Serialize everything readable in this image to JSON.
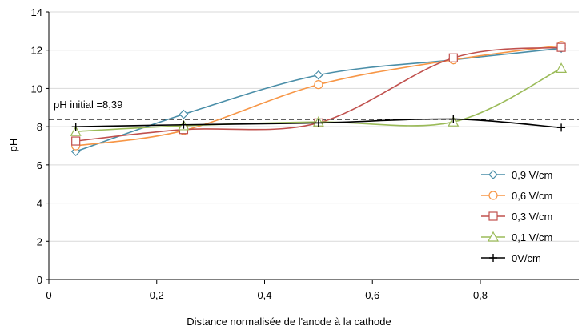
{
  "chart_data": {
    "type": "line",
    "xlabel": "Distance normalisée de l'anode à la cathode",
    "ylabel": "pH",
    "xlim": [
      0,
      1
    ],
    "ylim": [
      0,
      14
    ],
    "x_ticks": [
      0,
      0.2,
      0.4,
      0.6,
      0.8
    ],
    "x_tick_labels": [
      "0",
      "0,2",
      "0,4",
      "0,6",
      "0,8"
    ],
    "y_ticks": [
      0,
      2,
      4,
      6,
      8,
      10,
      12,
      14
    ],
    "y_tick_labels": [
      "0",
      "2",
      "4",
      "6",
      "8",
      "10",
      "12",
      "14"
    ],
    "grid": "horizontal",
    "smooth": true,
    "legend_position": "bottom-right",
    "reference_line": {
      "y": 8.39,
      "style": "dashed",
      "color": "#000000",
      "label": "pH initial =8,39"
    },
    "series": [
      {
        "name": "0,9 V/cm",
        "color": "#4a8ea8",
        "marker": "diamond",
        "x": [
          0.05,
          0.25,
          0.5,
          0.75,
          0.95
        ],
        "y": [
          6.7,
          8.65,
          10.7,
          11.5,
          12.1
        ]
      },
      {
        "name": "0,6 V/cm",
        "color": "#f79646",
        "marker": "circle",
        "x": [
          0.05,
          0.25,
          0.5,
          0.75,
          0.95
        ],
        "y": [
          7.0,
          7.8,
          10.2,
          11.5,
          12.25
        ]
      },
      {
        "name": "0,3 V/cm",
        "color": "#c0504d",
        "marker": "square",
        "x": [
          0.05,
          0.25,
          0.5,
          0.75,
          0.95
        ],
        "y": [
          7.25,
          7.85,
          8.2,
          11.6,
          12.15
        ]
      },
      {
        "name": "0,1 V/cm",
        "color": "#9bbb59",
        "marker": "triangle",
        "x": [
          0.05,
          0.25,
          0.5,
          0.75,
          0.95
        ],
        "y": [
          7.75,
          8.05,
          8.25,
          8.25,
          11.05
        ]
      },
      {
        "name": "0V/cm",
        "color": "#000000",
        "marker": "plus",
        "x": [
          0.05,
          0.25,
          0.5,
          0.75,
          0.95
        ],
        "y": [
          8.0,
          8.1,
          8.2,
          8.4,
          7.95
        ]
      }
    ]
  }
}
